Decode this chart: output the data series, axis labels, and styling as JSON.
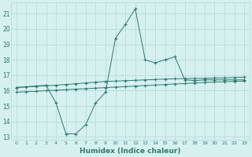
{
  "xlabel": "Humidex (Indice chaleur)",
  "bg_color": "#d6f0f0",
  "grid_color": "#b0d8d8",
  "line_color": "#2d7a6e",
  "xlim": [
    -0.5,
    23.5
  ],
  "ylim": [
    12.8,
    21.7
  ],
  "yticks": [
    13,
    14,
    15,
    16,
    17,
    18,
    19,
    20,
    21
  ],
  "xticks": [
    0,
    1,
    2,
    3,
    4,
    5,
    6,
    7,
    8,
    9,
    10,
    11,
    12,
    13,
    14,
    15,
    16,
    17,
    18,
    19,
    20,
    21,
    22,
    23
  ],
  "series": [
    {
      "x": [
        0,
        1,
        2,
        3,
        4,
        5,
        6,
        7,
        8,
        9,
        10,
        11,
        12,
        13,
        14,
        15,
        16,
        17,
        18,
        19,
        20,
        21,
        22,
        23
      ],
      "y": [
        16.2,
        16.25,
        16.28,
        16.32,
        16.35,
        16.4,
        16.45,
        16.5,
        16.55,
        16.6,
        16.62,
        16.65,
        16.67,
        16.7,
        16.72,
        16.75,
        16.77,
        16.78,
        16.79,
        16.8,
        16.82,
        16.83,
        16.85,
        16.87
      ]
    },
    {
      "x": [
        0,
        1,
        2,
        3,
        4,
        5,
        6,
        7,
        8,
        9,
        10,
        11,
        12,
        13,
        14,
        15,
        16,
        17,
        18,
        19,
        20,
        21,
        22,
        23
      ],
      "y": [
        15.9,
        15.93,
        15.96,
        16.0,
        16.03,
        16.06,
        16.1,
        16.13,
        16.16,
        16.2,
        16.23,
        16.26,
        16.3,
        16.33,
        16.36,
        16.4,
        16.43,
        16.46,
        16.5,
        16.53,
        16.56,
        16.58,
        16.6,
        16.62
      ]
    },
    {
      "x": [
        0,
        2,
        3,
        4,
        5,
        6,
        7,
        8,
        9,
        10,
        11,
        12,
        13,
        14,
        15,
        16,
        17,
        18,
        19,
        20,
        21,
        22,
        23
      ],
      "y": [
        16.2,
        16.3,
        16.35,
        15.2,
        13.2,
        13.2,
        13.8,
        15.2,
        15.9,
        19.4,
        20.3,
        21.3,
        18.0,
        17.8,
        18.0,
        18.2,
        16.7,
        16.65,
        16.7,
        16.7,
        16.7,
        16.7,
        16.7
      ]
    }
  ]
}
